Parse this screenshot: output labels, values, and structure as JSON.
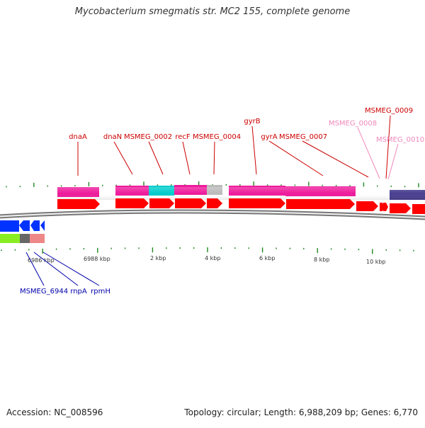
{
  "title": "Mycobacterium smegmatis str. MC2 155, complete genome",
  "footer": {
    "accession": "Accession: NC_008596",
    "summary": "Topology: circular; Length: 6,988,209 bp; Genes: 6,770"
  },
  "colors": {
    "forward_label": "#cc0000",
    "forward_label_faded": "#ee88bb",
    "reverse_label": "#0000aa",
    "gene_red": "#ff0000",
    "cds_pink": "#ee1c9c",
    "cds_cyan": "#00cccc",
    "cds_gray": "#bbbbbb",
    "cds_purple": "#4a4090",
    "reverse_blue": "#0033ff",
    "reverse_green": "#88ee22",
    "tick_green": "#228822",
    "backbone": "#888888"
  },
  "icons": {
    "forward_arrow": "right-arrow-icon",
    "reverse_arrow": "left-arrow-icon"
  },
  "labels": {
    "forward": [
      "dnaA",
      "dnaN",
      "MSMEG_0002",
      "recF",
      "MSMEG_0004",
      "gyrB",
      "gyrA",
      "MSMEG_0007",
      "MSMEG_0008",
      "MSMEG_0009",
      "MSMEG_0010"
    ],
    "reverse": [
      "MSMEG_6944",
      "rnpA",
      "rpmH"
    ]
  },
  "ruler": {
    "labels": [
      "6986 kbp",
      "6988 kbp",
      "2 kbp",
      "4 kbp",
      "6 kbp",
      "8 kbp",
      "10 kbp"
    ]
  }
}
